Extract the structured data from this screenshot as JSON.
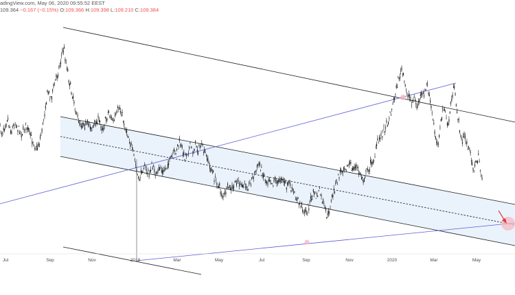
{
  "header": {
    "source_line": "adingView.com, May 06, 2020 09:55:52 EEST",
    "price": "109.364",
    "change": "−0.167 (−0.15%)",
    "o_label": "O:",
    "o_value": "109.366",
    "h_label": "H:",
    "h_value": "109.398",
    "l_label": "L:",
    "l_value": "109.210",
    "c_label": "C:",
    "c_value": "109.384"
  },
  "colors": {
    "candles": "#1a1a1a",
    "channel_lines": "#1a1a1a",
    "trend_lines": "#5b5bd6",
    "band_fill": "#e6f1fc",
    "highlight": "#f7b8c3",
    "arrow": "#e53935"
  },
  "chart_data": {
    "type": "candlestick",
    "x_axis_labels": [
      "Jul",
      "Sep",
      "Nov",
      "2019",
      "Mar",
      "May",
      "Jul",
      "Sep",
      "Nov",
      "2020",
      "Mar",
      "May"
    ],
    "grid": false,
    "series": [
      {
        "values": [
          [
            0,
            0.44
          ],
          [
            3,
            0.47
          ],
          [
            7,
            0.43
          ],
          [
            11,
            0.4
          ],
          [
            16,
            0.46
          ],
          [
            22,
            0.42
          ],
          [
            27,
            0.45
          ],
          [
            33,
            0.47
          ],
          [
            38,
            0.43
          ],
          [
            43,
            0.47
          ],
          [
            48,
            0.5
          ],
          [
            53,
            0.54
          ],
          [
            58,
            0.5
          ],
          [
            62,
            0.44
          ],
          [
            66,
            0.35
          ],
          [
            70,
            0.28
          ],
          [
            74,
            0.31
          ],
          [
            78,
            0.27
          ],
          [
            82,
            0.22
          ],
          [
            86,
            0.18
          ],
          [
            90,
            0.12
          ],
          [
            93,
            0.09
          ],
          [
            96,
            0.15
          ],
          [
            99,
            0.2
          ],
          [
            102,
            0.26
          ],
          [
            105,
            0.29
          ],
          [
            108,
            0.33
          ],
          [
            111,
            0.38
          ],
          [
            114,
            0.41
          ],
          [
            118,
            0.43
          ],
          [
            122,
            0.42
          ],
          [
            126,
            0.44
          ],
          [
            130,
            0.42
          ],
          [
            134,
            0.45
          ],
          [
            138,
            0.43
          ],
          [
            142,
            0.41
          ],
          [
            146,
            0.42
          ],
          [
            150,
            0.45
          ],
          [
            154,
            0.41
          ],
          [
            158,
            0.37
          ],
          [
            162,
            0.4
          ],
          [
            166,
            0.42
          ],
          [
            170,
            0.38
          ],
          [
            174,
            0.35
          ],
          [
            178,
            0.39
          ],
          [
            182,
            0.44
          ],
          [
            186,
            0.47
          ],
          [
            190,
            0.51
          ],
          [
            193,
            0.55
          ],
          [
            196,
            0.58
          ],
          [
            199,
            0.63
          ],
          [
            202,
            0.68
          ],
          [
            205,
            0.65
          ],
          [
            209,
            0.61
          ],
          [
            213,
            0.63
          ],
          [
            217,
            0.65
          ],
          [
            221,
            0.61
          ],
          [
            225,
            0.63
          ],
          [
            229,
            0.66
          ],
          [
            233,
            0.61
          ],
          [
            237,
            0.64
          ],
          [
            241,
            0.62
          ],
          [
            245,
            0.6
          ],
          [
            249,
            0.58
          ],
          [
            253,
            0.56
          ],
          [
            257,
            0.54
          ],
          [
            261,
            0.51
          ],
          [
            265,
            0.54
          ],
          [
            269,
            0.57
          ],
          [
            273,
            0.55
          ],
          [
            277,
            0.52
          ],
          [
            281,
            0.55
          ],
          [
            285,
            0.52
          ],
          [
            289,
            0.54
          ],
          [
            293,
            0.52
          ],
          [
            297,
            0.55
          ],
          [
            301,
            0.57
          ],
          [
            305,
            0.61
          ],
          [
            309,
            0.64
          ],
          [
            313,
            0.67
          ],
          [
            317,
            0.69
          ],
          [
            321,
            0.72
          ],
          [
            325,
            0.75
          ],
          [
            329,
            0.73
          ],
          [
            333,
            0.7
          ],
          [
            337,
            0.72
          ],
          [
            341,
            0.7
          ],
          [
            345,
            0.67
          ],
          [
            349,
            0.69
          ],
          [
            353,
            0.71
          ],
          [
            357,
            0.69
          ],
          [
            361,
            0.71
          ],
          [
            365,
            0.68
          ],
          [
            369,
            0.66
          ],
          [
            373,
            0.63
          ],
          [
            377,
            0.6
          ],
          [
            381,
            0.63
          ],
          [
            385,
            0.66
          ],
          [
            389,
            0.68
          ],
          [
            393,
            0.66
          ],
          [
            397,
            0.69
          ],
          [
            401,
            0.67
          ],
          [
            405,
            0.69
          ],
          [
            409,
            0.66
          ],
          [
            413,
            0.68
          ],
          [
            417,
            0.7
          ],
          [
            421,
            0.69
          ],
          [
            425,
            0.72
          ],
          [
            429,
            0.74
          ],
          [
            433,
            0.76
          ],
          [
            437,
            0.78
          ],
          [
            441,
            0.8
          ],
          [
            445,
            0.82
          ],
          [
            449,
            0.79
          ],
          [
            453,
            0.76
          ],
          [
            457,
            0.73
          ],
          [
            461,
            0.75
          ],
          [
            465,
            0.72
          ],
          [
            469,
            0.76
          ],
          [
            473,
            0.8
          ],
          [
            477,
            0.84
          ],
          [
            481,
            0.79
          ],
          [
            485,
            0.74
          ],
          [
            489,
            0.7
          ],
          [
            493,
            0.66
          ],
          [
            497,
            0.63
          ],
          [
            501,
            0.61
          ],
          [
            505,
            0.62
          ],
          [
            509,
            0.6
          ],
          [
            513,
            0.63
          ],
          [
            517,
            0.61
          ],
          [
            521,
            0.63
          ],
          [
            525,
            0.65
          ],
          [
            529,
            0.67
          ],
          [
            533,
            0.64
          ],
          [
            537,
            0.62
          ],
          [
            541,
            0.6
          ],
          [
            545,
            0.58
          ],
          [
            549,
            0.52
          ],
          [
            553,
            0.49
          ],
          [
            557,
            0.46
          ],
          [
            561,
            0.44
          ],
          [
            565,
            0.41
          ],
          [
            569,
            0.38
          ],
          [
            573,
            0.33
          ],
          [
            577,
            0.27
          ],
          [
            581,
            0.22
          ],
          [
            585,
            0.19
          ],
          [
            588,
            0.23
          ],
          [
            591,
            0.27
          ],
          [
            595,
            0.3
          ],
          [
            599,
            0.33
          ],
          [
            603,
            0.31
          ],
          [
            607,
            0.35
          ],
          [
            611,
            0.32
          ],
          [
            615,
            0.3
          ],
          [
            619,
            0.29
          ],
          [
            622,
            0.24
          ],
          [
            625,
            0.3
          ],
          [
            628,
            0.36
          ],
          [
            631,
            0.42
          ],
          [
            634,
            0.47
          ],
          [
            637,
            0.52
          ],
          [
            640,
            0.47
          ],
          [
            643,
            0.41
          ],
          [
            646,
            0.35
          ],
          [
            649,
            0.39
          ],
          [
            652,
            0.44
          ],
          [
            655,
            0.38
          ],
          [
            658,
            0.31
          ],
          [
            661,
            0.27
          ],
          [
            664,
            0.33
          ],
          [
            667,
            0.4
          ],
          [
            670,
            0.46
          ],
          [
            673,
            0.51
          ],
          [
            676,
            0.47
          ],
          [
            679,
            0.51
          ],
          [
            682,
            0.53
          ],
          [
            685,
            0.56
          ],
          [
            688,
            0.6
          ],
          [
            691,
            0.63
          ],
          [
            694,
            0.59
          ],
          [
            697,
            0.57
          ],
          [
            700,
            0.64
          ],
          [
            702,
            0.66
          ]
        ]
      }
    ]
  }
}
